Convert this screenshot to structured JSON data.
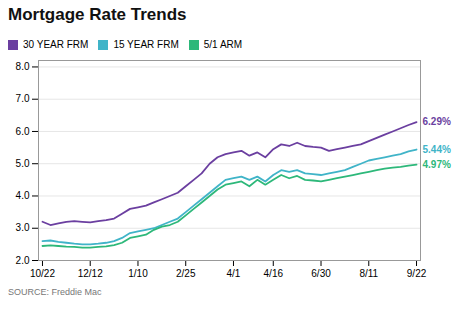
{
  "chart_data": {
    "type": "line",
    "title": "Mortgage Rate Trends",
    "caption": "SOURCE: Freddie Mac",
    "categories": [
      "10/22",
      null,
      null,
      null,
      null,
      null,
      "12/12",
      null,
      null,
      null,
      null,
      null,
      "1/10",
      null,
      null,
      null,
      null,
      null,
      "2/25",
      null,
      null,
      null,
      null,
      null,
      "4/1",
      null,
      null,
      null,
      null,
      "4/16",
      null,
      null,
      null,
      null,
      null,
      "6/30",
      null,
      null,
      null,
      null,
      null,
      "8/11",
      null,
      null,
      null,
      null,
      null,
      "9/22"
    ],
    "series": [
      {
        "name": "30 YEAR FRM",
        "color": "#6b3fa0",
        "values": [
          3.2,
          3.1,
          3.15,
          3.2,
          3.22,
          3.2,
          3.18,
          3.22,
          3.25,
          3.3,
          3.45,
          3.6,
          3.65,
          3.7,
          3.8,
          3.9,
          4.0,
          4.1,
          4.3,
          4.5,
          4.7,
          5.0,
          5.2,
          5.3,
          5.35,
          5.4,
          5.25,
          5.35,
          5.2,
          5.45,
          5.6,
          5.55,
          5.65,
          5.55,
          5.52,
          5.5,
          5.4,
          5.45,
          5.5,
          5.55,
          5.6,
          5.7,
          5.8,
          5.9,
          6.0,
          6.1,
          6.2,
          6.29
        ]
      },
      {
        "name": "15 YEAR FRM",
        "color": "#40b4c8",
        "values": [
          2.6,
          2.62,
          2.58,
          2.55,
          2.52,
          2.5,
          2.5,
          2.52,
          2.55,
          2.6,
          2.7,
          2.85,
          2.9,
          2.95,
          3.0,
          3.1,
          3.2,
          3.3,
          3.5,
          3.7,
          3.9,
          4.1,
          4.3,
          4.5,
          4.55,
          4.6,
          4.5,
          4.6,
          4.45,
          4.65,
          4.8,
          4.75,
          4.8,
          4.7,
          4.68,
          4.65,
          4.7,
          4.75,
          4.8,
          4.9,
          5.0,
          5.1,
          5.15,
          5.2,
          5.25,
          5.3,
          5.38,
          5.44
        ]
      },
      {
        "name": "5/1 ARM",
        "color": "#2db87a",
        "values": [
          2.45,
          2.47,
          2.45,
          2.43,
          2.42,
          2.4,
          2.4,
          2.42,
          2.44,
          2.48,
          2.55,
          2.7,
          2.75,
          2.8,
          2.95,
          3.05,
          3.1,
          3.2,
          3.4,
          3.6,
          3.8,
          4.0,
          4.2,
          4.35,
          4.4,
          4.45,
          4.3,
          4.5,
          4.35,
          4.5,
          4.65,
          4.55,
          4.62,
          4.5,
          4.48,
          4.45,
          4.5,
          4.55,
          4.6,
          4.65,
          4.7,
          4.75,
          4.8,
          4.85,
          4.88,
          4.9,
          4.94,
          4.97
        ]
      }
    ],
    "annotations": [
      {
        "text": "6.29%",
        "x": "9/22",
        "y": 6.29,
        "color": "#6b3fa0"
      },
      {
        "text": "5.44%",
        "x": "9/22",
        "y": 5.44,
        "color": "#40b4c8"
      },
      {
        "text": "4.97%",
        "x": "9/22",
        "y": 4.97,
        "color": "#2db87a"
      }
    ],
    "ylim": [
      2,
      8.2
    ],
    "yticks": [
      2,
      3,
      4,
      5,
      6,
      7,
      8
    ],
    "grid": true,
    "legend": "top"
  }
}
